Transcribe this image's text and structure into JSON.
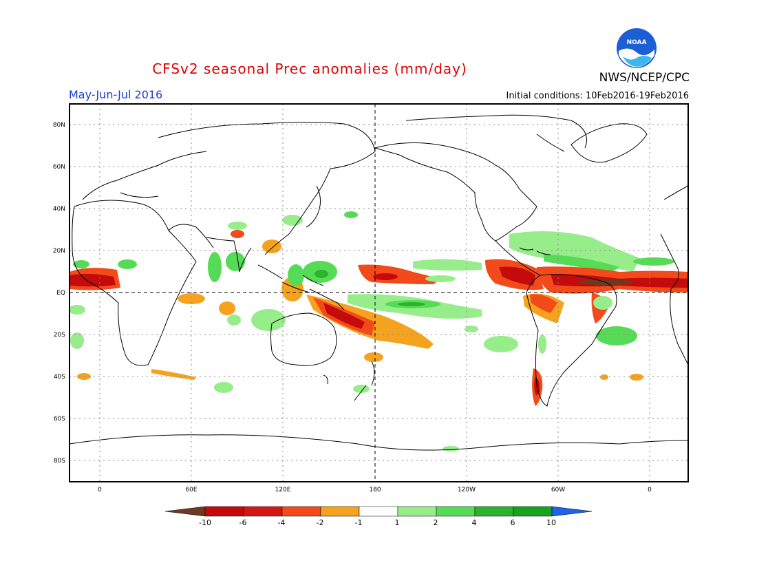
{
  "header": {
    "title": "CFSv2 seasonal Prec anomalies (mm/day)",
    "season": "May-Jun-Jul 2016",
    "initial_conditions": "Initial conditions: 10Feb2016-19Feb2016",
    "agency": "NWS/NCEP/CPC",
    "logo_text": "NOAA"
  },
  "map": {
    "lat_labels": [
      "80N",
      "60N",
      "40N",
      "20N",
      "EQ",
      "20S",
      "40S",
      "60S",
      "80S"
    ],
    "lon_labels": [
      "0",
      "60E",
      "120E",
      "180",
      "120W",
      "60W",
      "0"
    ]
  },
  "colorbar": {
    "tick_labels": [
      "-10",
      "-6",
      "-4",
      "-2",
      "-1",
      "1",
      "2",
      "4",
      "6",
      "10"
    ],
    "colors": [
      "#6b3a22",
      "#c30b0b",
      "#d41818",
      "#f24a1a",
      "#f5a21e",
      "#ffffff",
      "#96ed8a",
      "#56db56",
      "#2bb42b",
      "#16a31e",
      "#1e62e6"
    ]
  },
  "colors": {
    "title": "#e00000",
    "season": "#1a3cd6",
    "coastline": "#000000"
  }
}
